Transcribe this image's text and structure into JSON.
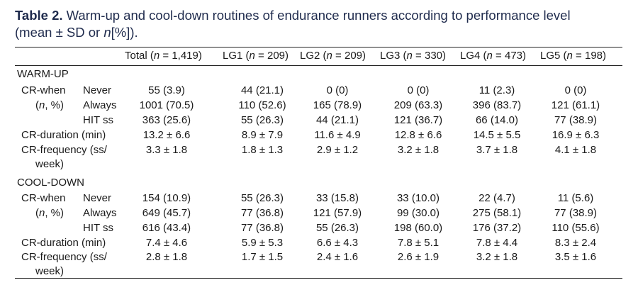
{
  "title": {
    "label": "Table 2.",
    "text": "Warm-up and cool-down routines of endurance runners according to performance level",
    "line2_open": "(mean ± SD or ",
    "line2_n": "n",
    "line2_close": "[%])."
  },
  "columns": [
    {
      "name": "Total",
      "n": "1,419"
    },
    {
      "name": "LG1",
      "n": "209"
    },
    {
      "name": "LG2",
      "n": "209"
    },
    {
      "name": "LG3",
      "n": "330"
    },
    {
      "name": "LG4",
      "n": "473"
    },
    {
      "name": "LG5",
      "n": "198"
    }
  ],
  "sections": {
    "warmup": "WARM-UP",
    "cooldown": "COOL-DOWN"
  },
  "labels": {
    "cr_when": "CR-when",
    "n_pct_open": "(",
    "n_pct_n": "n",
    "n_pct_close": ", %)",
    "never": "Never",
    "always": "Always",
    "hit": "HIT ss",
    "cr_duration": "CR-duration (min)",
    "cr_frequency": "CR-frequency (ss/",
    "week": "week)"
  },
  "warmup": {
    "never": [
      "55 (3.9)",
      "44 (21.1)",
      "0 (0)",
      "0 (0)",
      "11 (2.3)",
      "0 (0)"
    ],
    "always": [
      "1001 (70.5)",
      "110 (52.6)",
      "165 (78.9)",
      "209 (63.3)",
      "396 (83.7)",
      "121 (61.1)"
    ],
    "hit": [
      "363 (25.6)",
      "55 (26.3)",
      "44 (21.1)",
      "121 (36.7)",
      "66 (14.0)",
      "77 (38.9)"
    ],
    "duration": [
      "13.2 ± 6.6",
      "8.9 ± 7.9",
      "11.6 ± 4.9",
      "12.8 ± 6.6",
      "14.5 ± 5.5",
      "16.9 ± 6.3"
    ],
    "frequency": [
      "3.3 ± 1.8",
      "1.8 ± 1.3",
      "2.9 ± 1.2",
      "3.2 ± 1.8",
      "3.7 ± 1.8",
      "4.1 ± 1.8"
    ]
  },
  "cooldown": {
    "never": [
      "154 (10.9)",
      "55 (26.3)",
      "33 (15.8)",
      "33 (10.0)",
      "22 (4.7)",
      "11 (5.6)"
    ],
    "always": [
      "649 (45.7)",
      "77 (36.8)",
      "121 (57.9)",
      "99 (30.0)",
      "275 (58.1)",
      "77 (38.9)"
    ],
    "hit": [
      "616 (43.4)",
      "77 (36.8)",
      "55 (26.3)",
      "198 (60.0)",
      "176 (37.2)",
      "110 (55.6)"
    ],
    "duration": [
      "7.4 ± 4.6",
      "5.9 ± 5.3",
      "6.6 ± 4.3",
      "7.8 ± 5.1",
      "7.8 ± 4.4",
      "8.3 ± 2.4"
    ],
    "frequency": [
      "2.8 ± 1.8",
      "1.7 ± 1.5",
      "2.4 ± 1.6",
      "2.6 ± 1.9",
      "3.2 ± 1.8",
      "3.5 ± 1.6"
    ]
  }
}
